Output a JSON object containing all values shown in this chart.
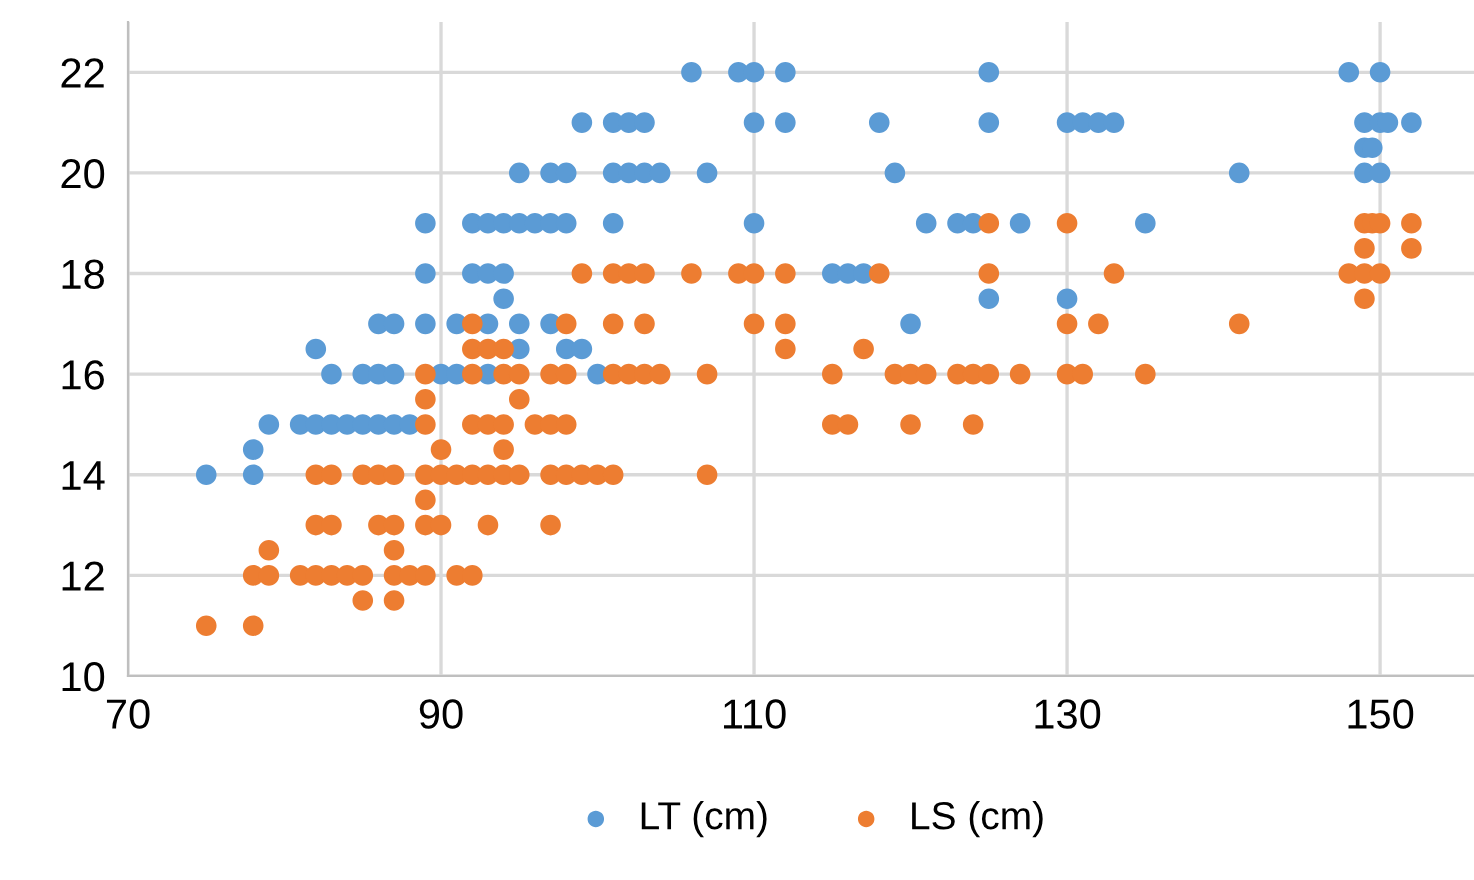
{
  "chart_data": {
    "type": "scatter",
    "xlim": [
      70,
      156
    ],
    "ylim": [
      10,
      23
    ],
    "xticks": [
      70,
      90,
      110,
      130,
      150
    ],
    "yticks": [
      10,
      12,
      14,
      16,
      18,
      20,
      22
    ],
    "grid": true,
    "legend": "bottom",
    "marker": "circle",
    "series": [
      {
        "name": "LT (cm)",
        "color": "#5b9bd5",
        "x": [
          75,
          78,
          78,
          79,
          81,
          82,
          83,
          84,
          85,
          86,
          87,
          88,
          83,
          85,
          86,
          87,
          89,
          90,
          91,
          92,
          93,
          100,
          82,
          95,
          98,
          99,
          86,
          87,
          89,
          91,
          93,
          95,
          97,
          120,
          94,
          125,
          130,
          89,
          92,
          93,
          94,
          115,
          116,
          117,
          89,
          92,
          93,
          94,
          95,
          96,
          97,
          98,
          101,
          110,
          121,
          123,
          124,
          127,
          135,
          95,
          97,
          98,
          101,
          102,
          103,
          104,
          107,
          119,
          141,
          149,
          150,
          149,
          149.5,
          99,
          101,
          102,
          103,
          110,
          112,
          118,
          125,
          130,
          131,
          132,
          133,
          149,
          150,
          150.5,
          152,
          106,
          109,
          110,
          112,
          125,
          148,
          150
        ],
        "values": [
          14,
          14,
          14.5,
          15,
          15,
          15,
          15,
          15,
          15,
          15,
          15,
          15,
          16,
          16,
          16,
          16,
          null,
          16,
          16,
          null,
          16,
          16,
          16.5,
          16.5,
          16.5,
          16.5,
          17,
          17,
          17,
          17,
          17,
          17,
          17,
          17,
          17.5,
          17.5,
          17.5,
          18,
          18,
          18,
          18,
          18,
          18,
          18,
          19,
          19,
          19,
          19,
          19,
          19,
          19,
          19,
          19,
          19,
          19,
          19,
          19,
          19,
          19,
          20,
          20,
          20,
          20,
          20,
          20,
          20,
          20,
          20,
          20,
          20,
          20,
          20.5,
          20.5,
          21,
          21,
          21,
          21,
          21,
          21,
          21,
          21,
          21,
          21,
          21,
          21,
          21,
          21,
          21,
          21,
          22,
          22,
          22,
          22,
          22,
          22,
          22
        ]
      },
      {
        "name": "LS (cm)",
        "color": "#ed7d31",
        "x": [
          75,
          78,
          85,
          87,
          78,
          79,
          81,
          82,
          83,
          84,
          85,
          87,
          88,
          89,
          91,
          92,
          79,
          87,
          82,
          83,
          86,
          87,
          89,
          90,
          93,
          97,
          89,
          82,
          83,
          85,
          86,
          87,
          89,
          90,
          91,
          92,
          93,
          94,
          95,
          97,
          98,
          99,
          100,
          101,
          107,
          90,
          94,
          89,
          92,
          93,
          94,
          96,
          97,
          98,
          115,
          116,
          120,
          124,
          89,
          95,
          89,
          92,
          94,
          95,
          97,
          98,
          101,
          102,
          103,
          104,
          107,
          115,
          119,
          120,
          121,
          123,
          124,
          125,
          127,
          130,
          131,
          135,
          92,
          93,
          94,
          112,
          117,
          92,
          98,
          101,
          103,
          110,
          112,
          130,
          132,
          141,
          149,
          99,
          101,
          102,
          103,
          106,
          109,
          110,
          112,
          118,
          125,
          133,
          148,
          149,
          150,
          149,
          152,
          125,
          130,
          149,
          149.5,
          150,
          152
        ],
        "values": [
          11,
          11,
          11.5,
          11.5,
          12,
          12,
          12,
          12,
          12,
          12,
          12,
          12,
          12,
          12,
          12,
          12,
          12.5,
          12.5,
          13,
          13,
          13,
          13,
          13,
          13,
          13,
          13,
          13.5,
          14,
          14,
          14,
          14,
          14,
          14,
          14,
          14,
          14,
          14,
          14,
          14,
          14,
          14,
          14,
          14,
          14,
          14,
          14.5,
          14.5,
          15,
          15,
          15,
          15,
          15,
          15,
          15,
          15,
          15,
          15,
          15,
          15.5,
          15.5,
          16,
          16,
          16,
          16,
          16,
          16,
          16,
          16,
          16,
          16,
          16,
          16,
          16,
          16,
          16,
          16,
          16,
          16,
          16,
          16,
          16,
          16,
          16.5,
          16.5,
          16.5,
          16.5,
          16.5,
          17,
          17,
          17,
          17,
          17,
          17,
          17,
          17,
          17,
          17.5,
          18,
          18,
          18,
          18,
          18,
          18,
          18,
          18,
          18,
          18,
          18,
          18,
          18,
          18,
          18.5,
          18.5,
          19,
          19,
          19,
          19,
          19,
          19
        ]
      }
    ]
  }
}
